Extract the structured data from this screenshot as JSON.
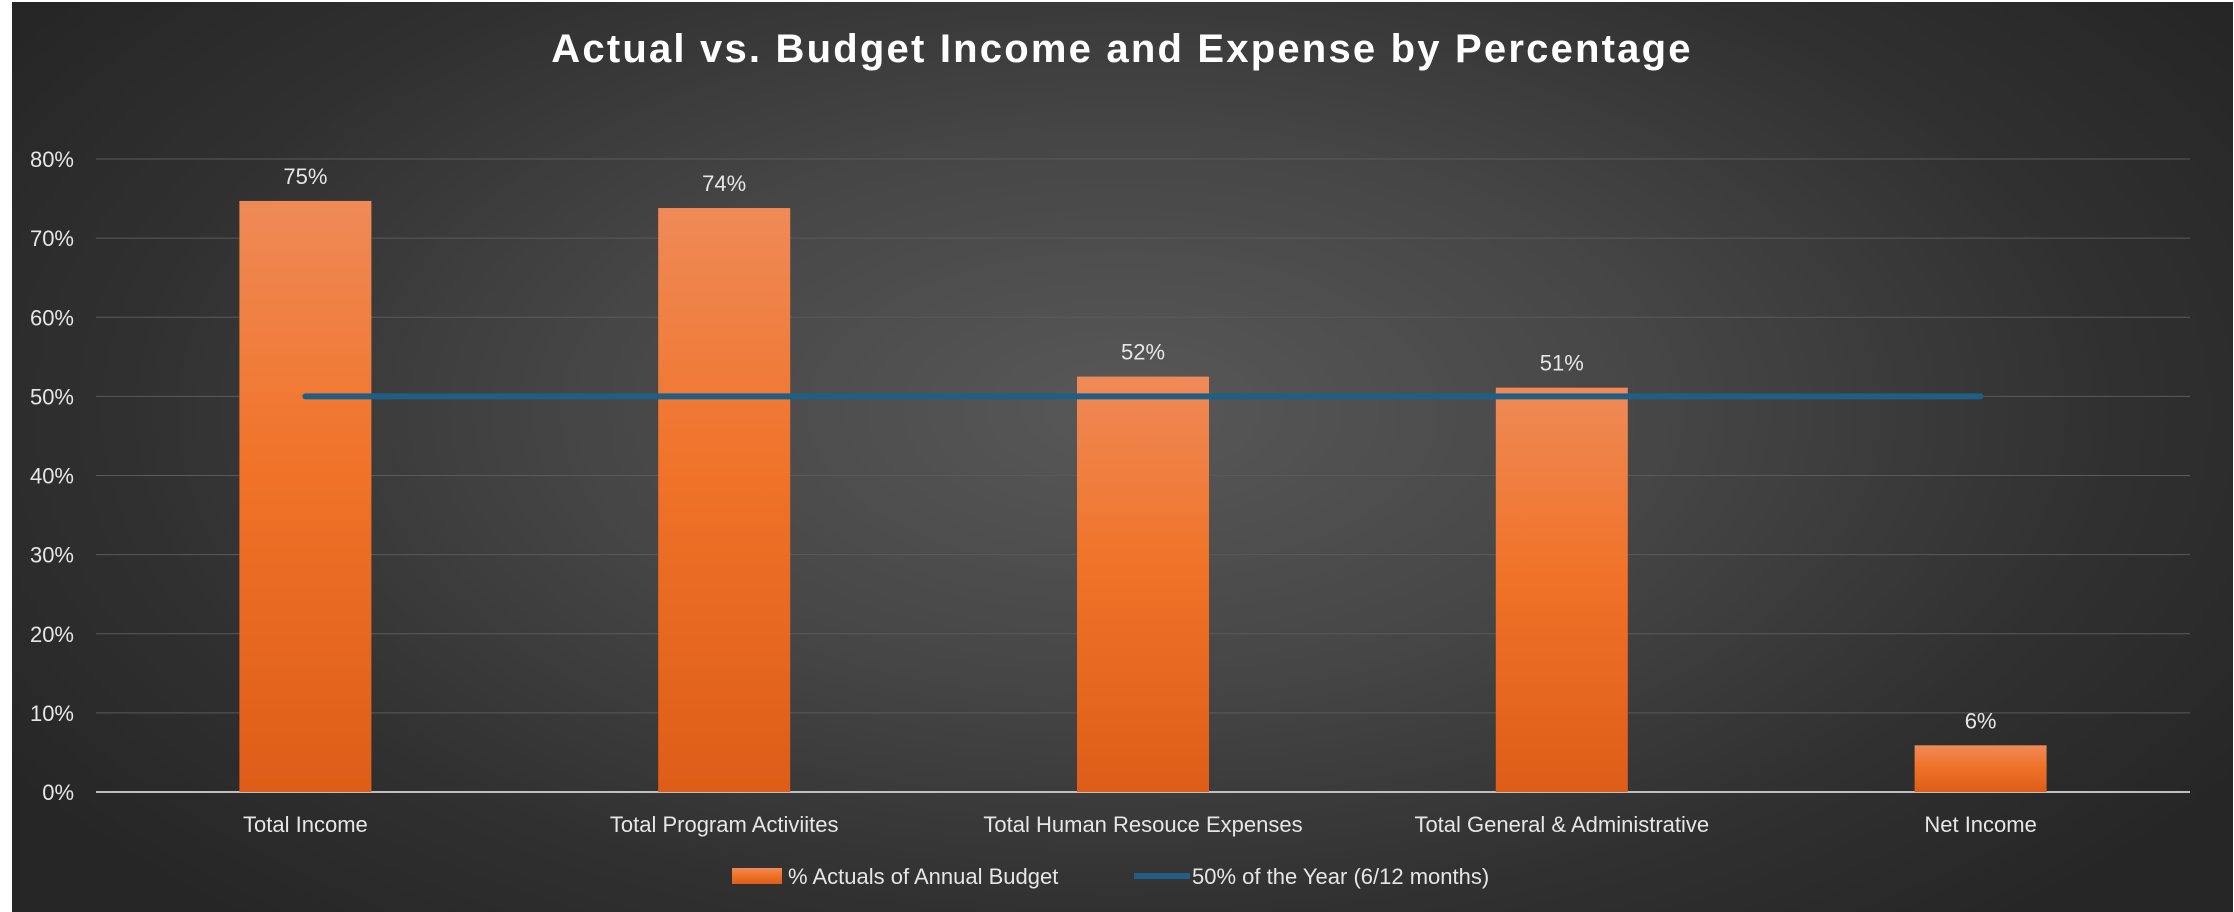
{
  "chart_data": {
    "type": "bar",
    "title": "Actual vs. Budget Income and Expense by Percentage",
    "xlabel": "",
    "ylabel": "",
    "categories": [
      "Total Income",
      "Total Program Activiites",
      "Total Human Resouce Expenses",
      "Total General & Administrative",
      "Net Income"
    ],
    "series": [
      {
        "name": "% Actuals of Annual Budget",
        "type": "bar",
        "values": [
          0.747,
          0.738,
          0.525,
          0.511,
          0.059
        ],
        "labels": [
          "75%",
          "74%",
          "52%",
          "51%",
          "6%"
        ],
        "color": "#ED7D31"
      },
      {
        "name": "50% of the Year (6/12 months)",
        "type": "line",
        "values": [
          0.5,
          0.5,
          0.5,
          0.5,
          0.5
        ],
        "color": "#1F5F86"
      }
    ],
    "ylim": [
      0,
      0.8
    ],
    "yticks": [
      "0%",
      "10%",
      "20%",
      "30%",
      "40%",
      "50%",
      "60%",
      "70%",
      "80%"
    ],
    "grid": true,
    "legend_position": "bottom"
  }
}
